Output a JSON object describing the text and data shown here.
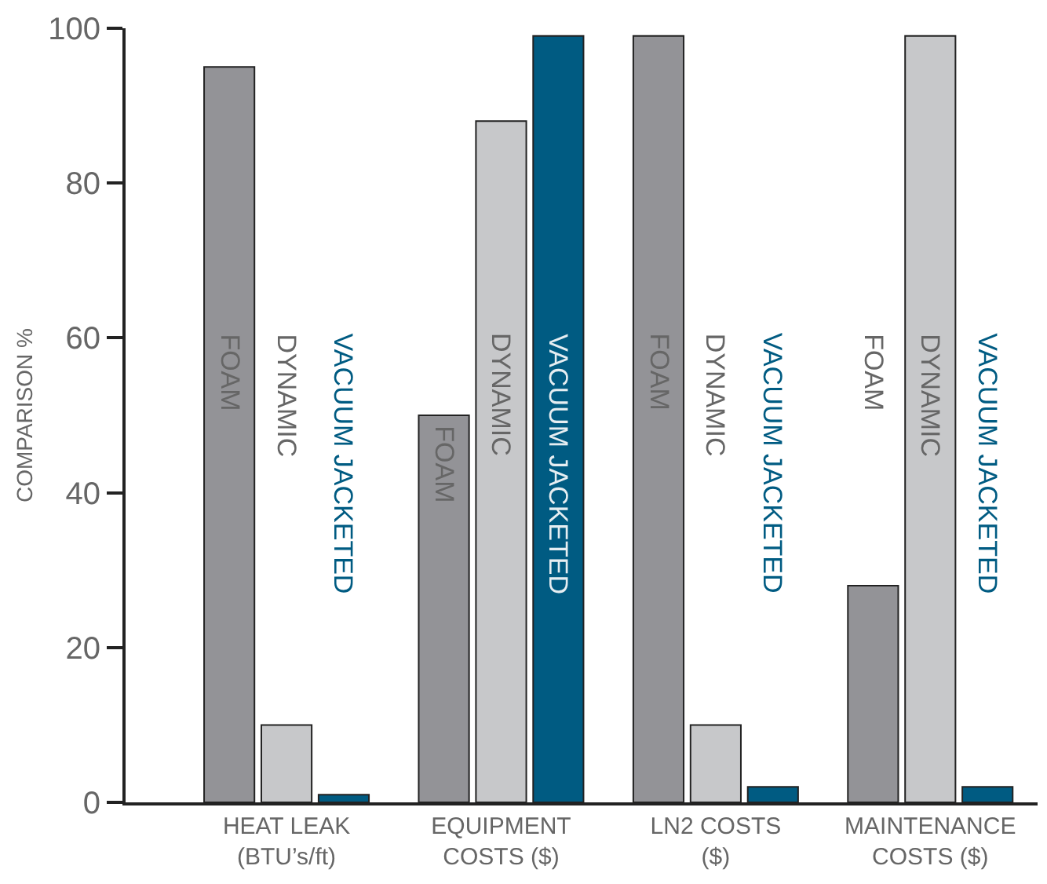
{
  "chart_data": {
    "type": "bar",
    "ylabel": "COMPARISON %",
    "categories": [
      "HEAT LEAK\n(BTU’s/ft)",
      "EQUIPMENT\nCOSTS ($)",
      "LN2 COSTS\n($)",
      "MAINTENANCE\nCOSTS ($)"
    ],
    "series": [
      {
        "name": "FOAM",
        "color": "#939397",
        "values": [
          95,
          50,
          99,
          28
        ]
      },
      {
        "name": "DYNAMIC",
        "color": "#c7c8ca",
        "values": [
          10,
          88,
          10,
          99
        ]
      },
      {
        "name": "VACUUM JACKETED",
        "color": "#005b82",
        "values": [
          1,
          99,
          2,
          2
        ]
      }
    ],
    "ylim": [
      0,
      100
    ],
    "yticks": [
      0,
      20,
      40,
      60,
      80,
      100
    ],
    "legend": false
  }
}
